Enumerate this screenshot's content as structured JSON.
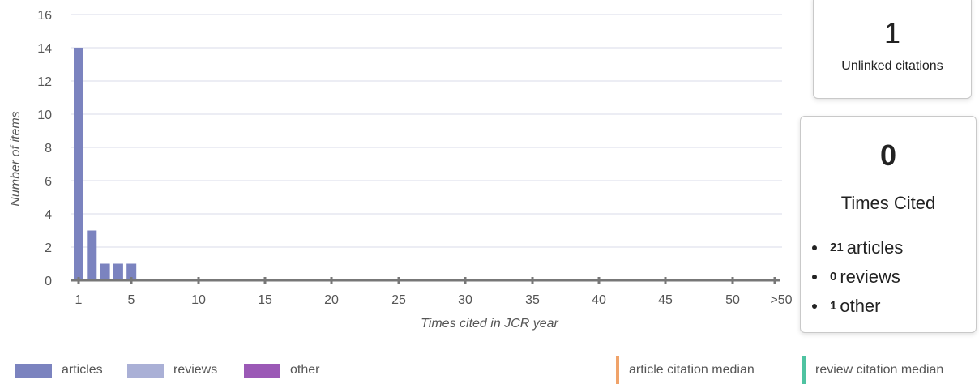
{
  "chart_data": {
    "type": "bar",
    "xlabel": "Times cited in JCR year",
    "ylabel": "Number of items",
    "ylim": [
      0,
      16
    ],
    "yticks": [
      0,
      2,
      4,
      6,
      8,
      10,
      12,
      14,
      16
    ],
    "x_tick_labels": [
      "1",
      "5",
      "10",
      "15",
      "20",
      "25",
      "30",
      "35",
      "40",
      "45",
      "50",
      ">50"
    ],
    "grid": true,
    "legend_position": "bottom",
    "categories": [
      "1",
      "2",
      "3",
      "4",
      "5"
    ],
    "series": [
      {
        "name": "articles",
        "values": [
          14,
          3,
          1,
          1,
          1
        ],
        "color": "#7b83bf"
      },
      {
        "name": "reviews",
        "values": [
          0,
          0,
          0,
          0,
          0
        ],
        "color": "#aab0d6"
      },
      {
        "name": "other",
        "values": [
          0,
          0,
          0,
          0,
          0
        ],
        "color": "#9b59b6"
      }
    ],
    "medians": [
      {
        "name": "article citation median",
        "color": "#f0a36a"
      },
      {
        "name": "review citation median",
        "color": "#4fc3a1"
      }
    ]
  },
  "unlinked": {
    "count": "1",
    "label": "Unlinked citations"
  },
  "times_cited": {
    "count": "0",
    "label": "Times Cited",
    "items": [
      {
        "num": "21",
        "label": "articles"
      },
      {
        "num": "0",
        "label": "reviews"
      },
      {
        "num": "1",
        "label": "other"
      }
    ]
  },
  "legend": {
    "articles": "articles",
    "reviews": "reviews",
    "other": "other",
    "article_median": "article citation median",
    "review_median": "review citation median"
  },
  "colors": {
    "articles": "#7b83bf",
    "reviews": "#aab0d6",
    "other": "#9b59b6",
    "article_median": "#f0a36a",
    "review_median": "#4fc3a1",
    "grid": "#d8dbe8",
    "axis": "#777777"
  }
}
